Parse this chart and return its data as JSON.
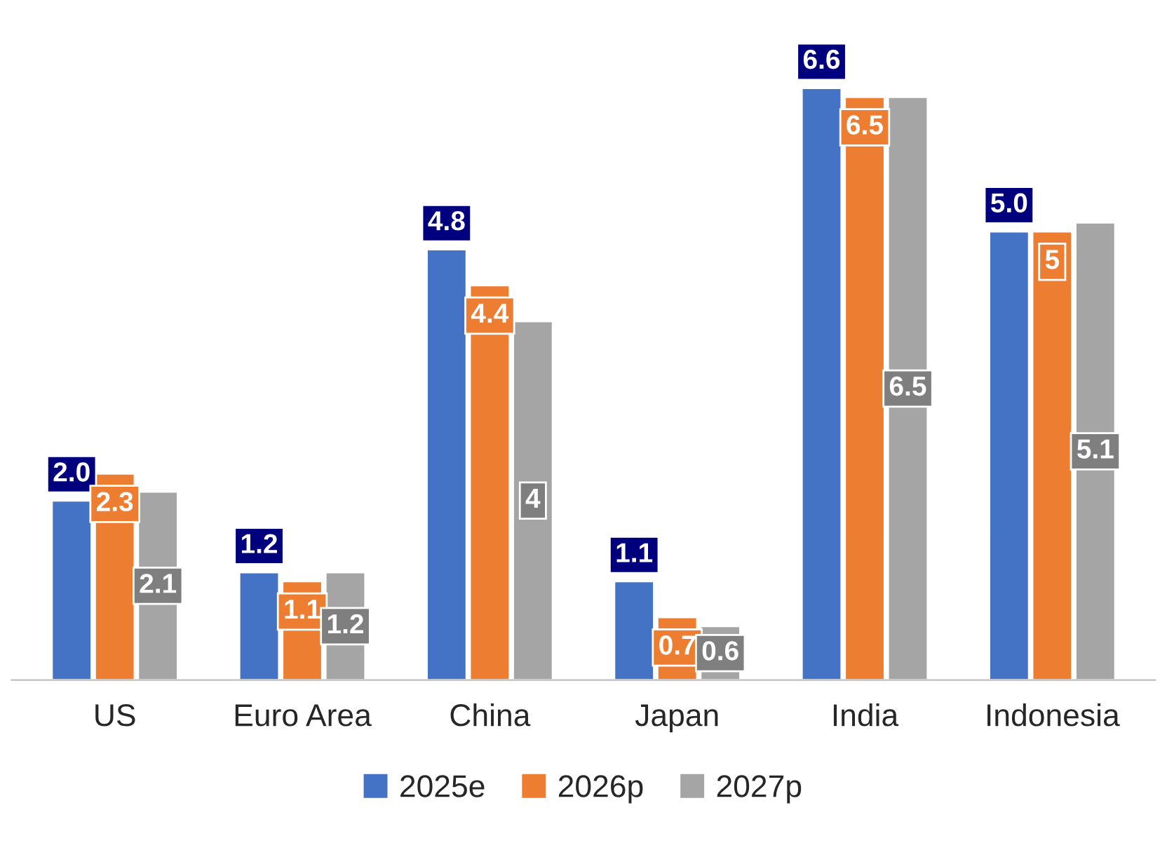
{
  "chart_data": {
    "type": "bar",
    "categories": [
      "US",
      "Euro Area",
      "China",
      "Japan",
      "India",
      "Indonesia"
    ],
    "series": [
      {
        "name": "2025e",
        "color": "#4472c4",
        "values": [
          2.0,
          1.2,
          4.8,
          1.1,
          6.6,
          5.0
        ],
        "value_labels": [
          "2.0",
          "1.2",
          "4.8",
          "1.1",
          "6.6",
          "5.0"
        ]
      },
      {
        "name": "2026p",
        "color": "#ed7d31",
        "values": [
          2.3,
          1.1,
          4.4,
          0.7,
          6.5,
          5
        ],
        "value_labels": [
          "2.3",
          "1.1",
          "4.4",
          "0.7",
          "6.5",
          "5"
        ]
      },
      {
        "name": "2027p",
        "color": "#a5a5a5",
        "values": [
          2.1,
          1.2,
          4,
          0.6,
          6.5,
          5.1
        ],
        "value_labels": [
          "2.1",
          "1.2",
          "4",
          "0.6",
          "6.5",
          "5.1"
        ]
      }
    ],
    "legend": "bottom",
    "grid": false
  }
}
